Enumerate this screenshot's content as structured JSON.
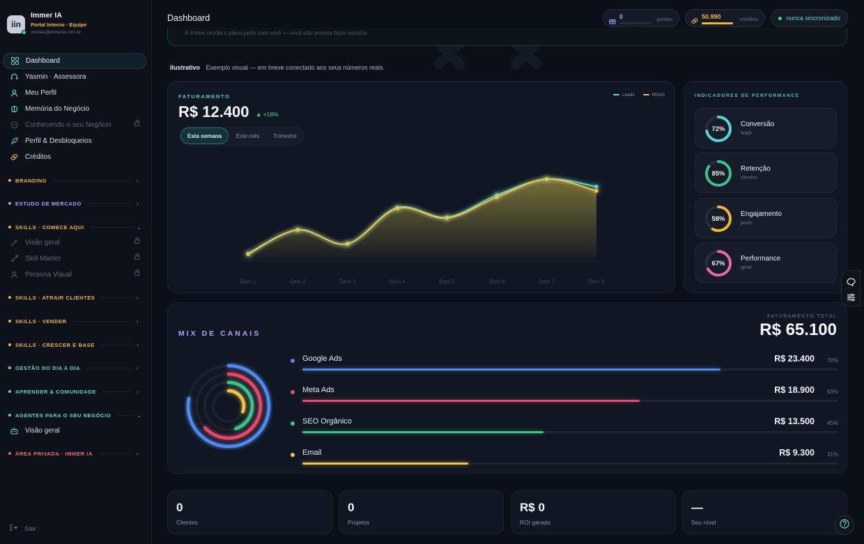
{
  "brand": {
    "logo_text": "iin",
    "name": "Immer IA",
    "subtitle": "Portal Interno · Equipe",
    "email": "vendas@immeria.com.br"
  },
  "nav": {
    "items": [
      {
        "label": "Dashboard",
        "icon": "grid-icon",
        "active": true
      },
      {
        "label": "Yasmin · Assessora",
        "icon": "headset-icon"
      },
      {
        "label": "Meu Perfil",
        "icon": "user-icon"
      },
      {
        "label": "Memória do Negócio",
        "icon": "brain-icon"
      },
      {
        "label": "Conhecendo o seu Negócio",
        "icon": "compass-icon",
        "locked": true
      },
      {
        "label": "Perfil & Desbloqueios",
        "icon": "rocket-icon"
      },
      {
        "label": "Créditos",
        "icon": "coins-icon"
      }
    ],
    "sections": [
      {
        "label": "BRANDING",
        "color": "#f0b534"
      },
      {
        "label": "ESTUDO DE MERCADO",
        "color": "#b59cff"
      },
      {
        "label": "SKILLS · COMECE AQUI",
        "color": "#f0b534",
        "expanded": true
      },
      {
        "label": "SKILLS · ATRAIR CLIENTES",
        "color": "#f0b534"
      },
      {
        "label": "SKILLS · VENDER",
        "color": "#f0b534"
      },
      {
        "label": "SKILLS · CRESCER E BASE",
        "color": "#f0b534"
      },
      {
        "label": "GESTÃO DO DIA A DIA",
        "color": "#56d7c9"
      },
      {
        "label": "APRENDER & COMUNIDADE",
        "color": "#56d7c9"
      },
      {
        "label": "AGENTES PARA O SEU NEGÓCIO",
        "color": "#56d7c9",
        "expanded": true
      },
      {
        "label": "ÁREA PRIVADA · IMMER IA",
        "color": "#f06a6a"
      }
    ],
    "skills_items": [
      {
        "label": "Visão geral",
        "icon": "wand-icon"
      },
      {
        "label": "Skill Master",
        "icon": "sword-icon"
      },
      {
        "label": "Persona Visual",
        "icon": "person-icon"
      }
    ],
    "agents_items": [
      {
        "label": "Visão geral",
        "icon": "robot-icon"
      }
    ],
    "logout": "Sair"
  },
  "topbar": {
    "title": "Dashboard",
    "points_value": "0",
    "points_label": "pontos",
    "credits_value": "50.990",
    "credits_label": "créditos",
    "credits_fill": 0.98,
    "sync_label": "nunca sincronizado"
  },
  "banner_text": "A Immer monta o plano junto com você — você não precisa fazer sozinho.",
  "illustrative": {
    "tag": "Ilustrativo",
    "text": "Exemplo visual — em breve conectado aos seus números reais."
  },
  "revenue": {
    "kicker": "FATURAMENTO",
    "value": "R$ 12.400",
    "delta": "▲ +18%",
    "tabs": [
      "Esta semana",
      "Este mês",
      "Trimestre"
    ],
    "active_tab": 0
  },
  "chart_data": {
    "type": "area",
    "categories": [
      "Sem 1",
      "Sem 2",
      "Sem 3",
      "Sem 4",
      "Sem 5",
      "Sem 6",
      "Sem 7",
      "Sem 8"
    ],
    "series": [
      {
        "name": "Leads",
        "color": "#4fd6d8",
        "values": [
          11,
          45,
          25,
          77,
          63,
          95,
          118,
          107
        ]
      },
      {
        "name": "ROAS",
        "color": "#f0c24a",
        "values": [
          10,
          45,
          25,
          76,
          62,
          92,
          118,
          101
        ]
      }
    ],
    "ylim": [
      0,
      140
    ],
    "grid": false,
    "legend": "top-right"
  },
  "performance": {
    "kicker": "INDICADORES DE PERFORMANCE",
    "items": [
      {
        "pct": "72%",
        "value": 0.72,
        "name": "Conversão",
        "sub": "leads",
        "color": "#4fd6d8"
      },
      {
        "pct": "85%",
        "value": 0.85,
        "name": "Retenção",
        "sub": "clientes",
        "color": "#3fc28a"
      },
      {
        "pct": "58%",
        "value": 0.58,
        "name": "Engajamento",
        "sub": "posts",
        "color": "#f0b534"
      },
      {
        "pct": "67%",
        "value": 0.67,
        "name": "Performance",
        "sub": "geral",
        "color": "#e86aa6"
      }
    ]
  },
  "mix": {
    "title": "MIX DE CANAIS",
    "total_label": "FATURAMENTO TOTAL",
    "total": "R$ 65.100",
    "channels": [
      {
        "name": "Google Ads",
        "value": "R$ 23.400",
        "pct": "78%",
        "fill": 0.78,
        "color": "#4f8af0"
      },
      {
        "name": "Meta Ads",
        "value": "R$ 18.900",
        "pct": "63%",
        "fill": 0.63,
        "color": "#e4486a"
      },
      {
        "name": "SEO Orgânico",
        "value": "R$ 13.500",
        "pct": "45%",
        "fill": 0.45,
        "color": "#3fc28a"
      },
      {
        "name": "Email",
        "value": "R$ 9.300",
        "pct": "31%",
        "fill": 0.31,
        "color": "#f0c24a"
      }
    ]
  },
  "stats": [
    {
      "value": "0",
      "label": "Clientes"
    },
    {
      "value": "0",
      "label": "Projetos"
    },
    {
      "value": "R$ 0",
      "label": "ROI gerado"
    },
    {
      "value": "—",
      "label": "Seu nível"
    }
  ]
}
